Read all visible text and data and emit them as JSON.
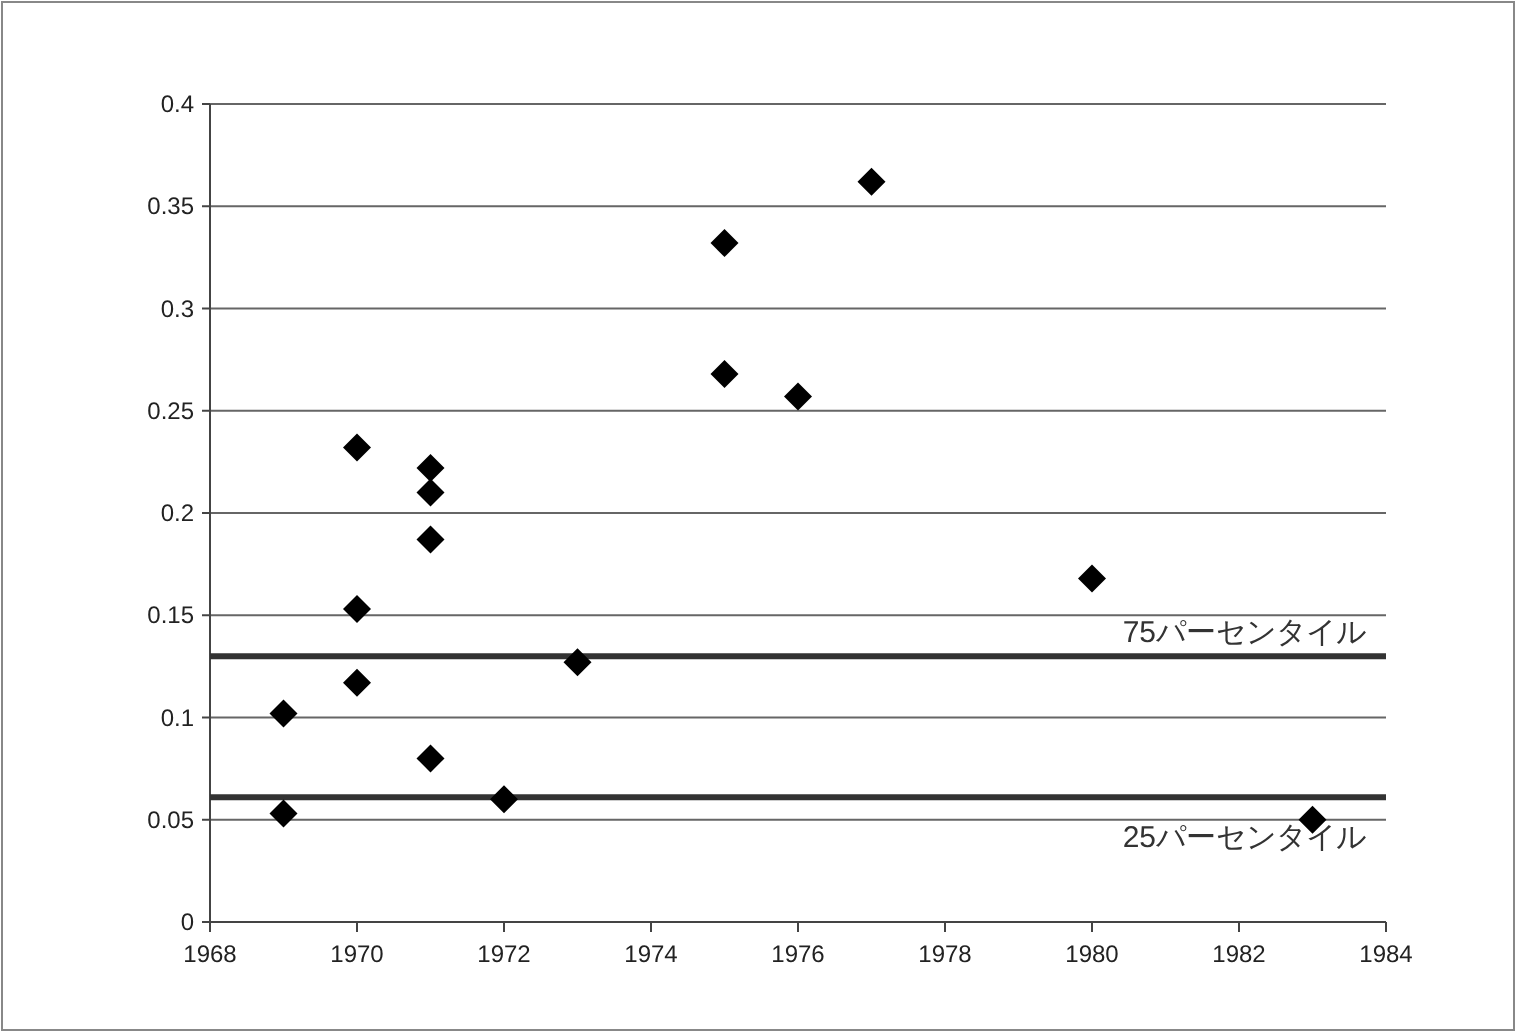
{
  "chart_data": {
    "type": "scatter",
    "x": [
      1969,
      1969,
      1970,
      1970,
      1970,
      1971,
      1971,
      1971,
      1971,
      1972,
      1973,
      1975,
      1975,
      1976,
      1977,
      1980,
      1983
    ],
    "series": [
      {
        "color": "#000000",
        "values": [
          0.102,
          0.053,
          0.232,
          0.153,
          0.117,
          0.222,
          0.21,
          0.187,
          0.08,
          0.06,
          0.127,
          0.332,
          0.268,
          0.257,
          0.362,
          0.168,
          0.05
        ]
      }
    ],
    "marker": "diamond",
    "xlim": [
      1968,
      1984
    ],
    "xticks": [
      1968,
      1970,
      1972,
      1974,
      1976,
      1978,
      1980,
      1982,
      1984
    ],
    "ylim": [
      0,
      0.4
    ],
    "yticks": [
      0,
      0.05,
      0.1,
      0.15,
      0.2,
      0.25,
      0.3,
      0.35,
      0.4
    ],
    "grid": "y",
    "ref_lines": [
      {
        "axis": "y",
        "value": 0.13,
        "label": "75パーセンタイル",
        "color": "#333333"
      },
      {
        "axis": "y",
        "value": 0.061,
        "label": "25パーセンタイル",
        "color": "#333333"
      }
    ]
  }
}
